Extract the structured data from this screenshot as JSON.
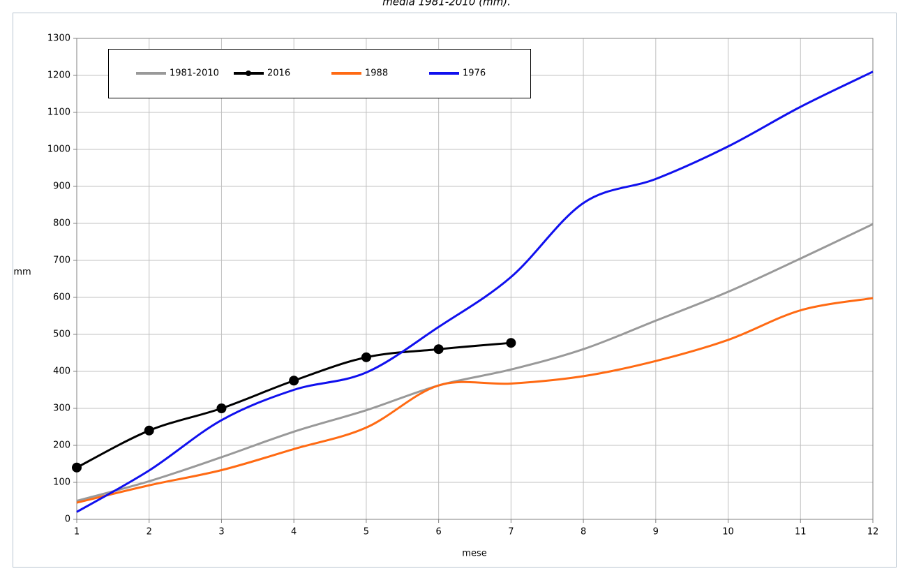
{
  "chart_data": {
    "type": "line",
    "title": "media 1981-2010 (mm).",
    "x_label": "mese",
    "y_label": "mm",
    "x": [
      1,
      2,
      3,
      4,
      5,
      6,
      7,
      8,
      9,
      10,
      11,
      12
    ],
    "series": [
      {
        "name": "1981-2010",
        "color": "#999999",
        "markers": false,
        "values": [
          50,
          103,
          168,
          237,
          295,
          362,
          405,
          460,
          537,
          615,
          705,
          798
        ]
      },
      {
        "name": "2016",
        "color": "#000000",
        "markers": true,
        "values": [
          140,
          240,
          300,
          375,
          438,
          460,
          477,
          null,
          null,
          null,
          null,
          null
        ]
      },
      {
        "name": "1988",
        "color": "#ff6a13",
        "markers": false,
        "values": [
          45,
          92,
          133,
          190,
          248,
          362,
          367,
          387,
          428,
          485,
          565,
          598
        ]
      },
      {
        "name": "1976",
        "color": "#1010ee",
        "markers": false,
        "values": [
          20,
          132,
          268,
          350,
          397,
          520,
          655,
          855,
          920,
          1008,
          1115,
          1210
        ]
      }
    ],
    "xlim": [
      1,
      12
    ],
    "xticks": [
      1,
      2,
      3,
      4,
      5,
      6,
      7,
      8,
      9,
      10,
      11,
      12
    ],
    "ylim": [
      0,
      1300
    ],
    "yticks": [
      0,
      100,
      200,
      300,
      400,
      500,
      600,
      700,
      800,
      900,
      1000,
      1100,
      1200,
      1300
    ],
    "grid": true,
    "smooth": true
  }
}
